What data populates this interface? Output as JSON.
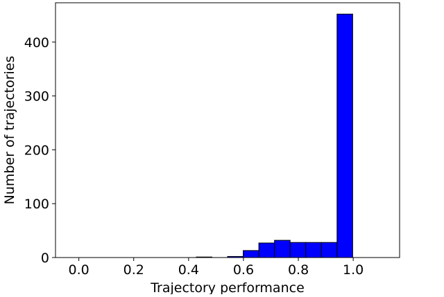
{
  "chart_data": {
    "type": "histogram",
    "x_label": "Trajectory performance",
    "y_label": "Number of trajectories",
    "bins": [
      -0.028,
      0.029,
      0.086,
      0.143,
      0.2,
      0.257,
      0.314,
      0.371,
      0.428,
      0.485,
      0.542,
      0.599,
      0.656,
      0.713,
      0.77,
      0.827,
      0.884,
      0.941,
      0.998,
      1.055,
      1.112
    ],
    "values": [
      0,
      0,
      0,
      0,
      0,
      0,
      0,
      0,
      1,
      0,
      2,
      13,
      27,
      32,
      28,
      28,
      28,
      452,
      0,
      0
    ],
    "color": "#0000ff",
    "edgecolor": "#000000",
    "xlim": [
      -0.085,
      1.169
    ],
    "ylim": [
      0,
      473
    ],
    "xticks": [
      {
        "value": 0,
        "label": "0.0"
      },
      0.2,
      0.4,
      0.6,
      0.8,
      {
        "value": 1,
        "label": "1.0"
      }
    ],
    "yticks": [
      0,
      100,
      200,
      300,
      400
    ],
    "grid": false
  }
}
